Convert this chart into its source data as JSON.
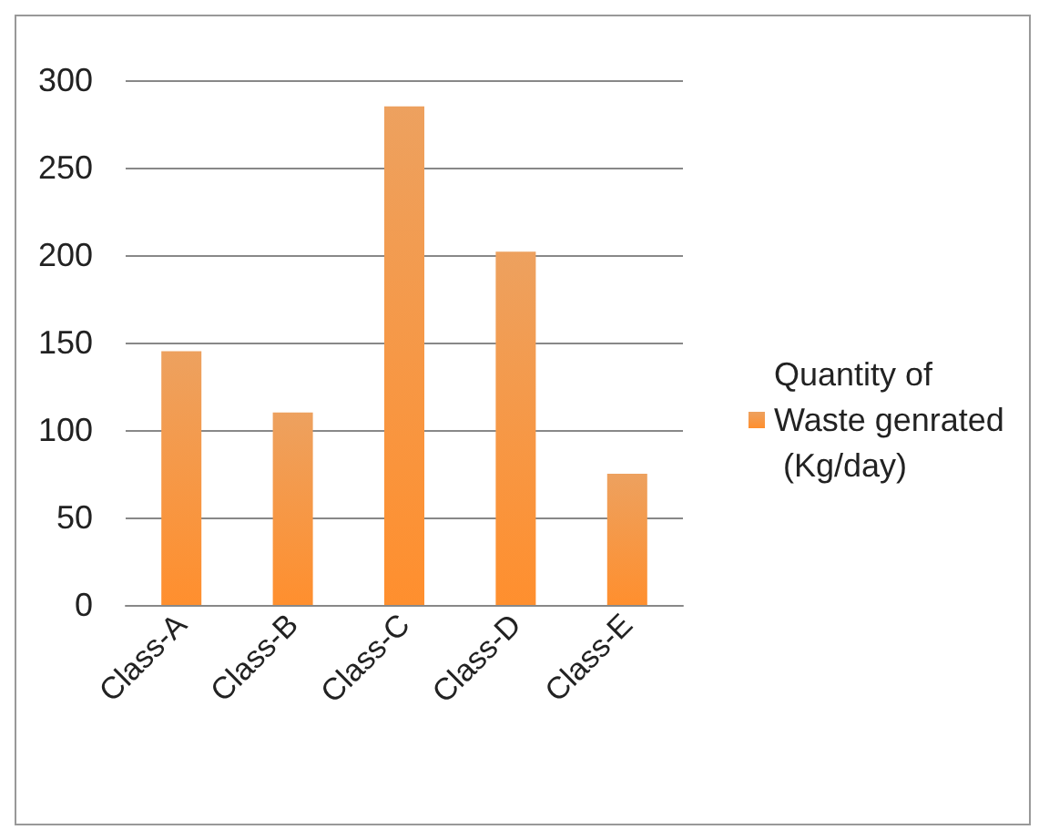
{
  "chart_data": {
    "type": "bar",
    "categories": [
      "Class-A",
      "Class-B",
      "Class-C",
      "Class-D",
      "Class-E"
    ],
    "series": [
      {
        "name": "Quantity of Waste genrated (Kg/day)",
        "color": "#e8822a",
        "values": [
          145,
          110,
          285,
          202,
          75
        ]
      }
    ],
    "ylim": [
      0,
      300
    ],
    "yticks": [
      0,
      50,
      100,
      150,
      200,
      250,
      300
    ],
    "grid": "y",
    "legend": "right"
  }
}
